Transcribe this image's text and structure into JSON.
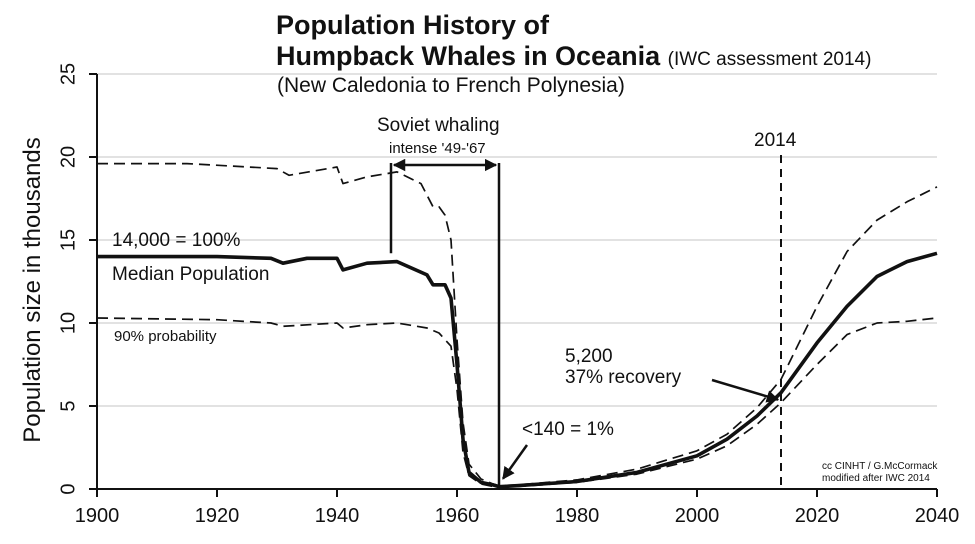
{
  "chart_data": {
    "type": "line",
    "title": "Population History of",
    "title_line2": "Humpback Whales in Oceania",
    "title_note": "(IWC assessment 2014)",
    "subtitle": "(New Caledonia to French Polynesia)",
    "xlabel": "",
    "ylabel": "Population size in thousands",
    "xlim": [
      1900,
      2040
    ],
    "ylim": [
      0,
      25
    ],
    "x_ticks": [
      1900,
      1920,
      1940,
      1960,
      1980,
      2000,
      2020,
      2040
    ],
    "y_ticks": [
      0,
      5,
      10,
      15,
      20,
      25
    ],
    "grid": "horizontal",
    "series": [
      {
        "name": "Median Population",
        "style": "solid",
        "x": [
          1900,
          1920,
          1929,
          1931,
          1935,
          1940,
          1941,
          1945,
          1950,
          1955,
          1956,
          1958,
          1959,
          1960,
          1961,
          1962,
          1964,
          1966,
          1967,
          1970,
          1980,
          1990,
          2000,
          2005,
          2010,
          2014,
          2020,
          2025,
          2030,
          2035,
          2040
        ],
        "y": [
          14.0,
          14.0,
          13.9,
          13.6,
          13.9,
          13.9,
          13.2,
          13.6,
          13.7,
          12.9,
          12.3,
          12.3,
          11.5,
          7.5,
          3.0,
          1.0,
          0.4,
          0.25,
          0.14,
          0.2,
          0.45,
          1.0,
          2.0,
          3.0,
          4.4,
          5.8,
          8.8,
          11.0,
          12.8,
          13.7,
          14.2
        ]
      },
      {
        "name": "90% probability (upper)",
        "style": "dashed",
        "x": [
          1900,
          1915,
          1930,
          1932,
          1940,
          1941,
          1945,
          1950,
          1954,
          1956,
          1957,
          1958,
          1959,
          1960,
          1961,
          1962,
          1964,
          1966,
          1967,
          1970,
          1980,
          1990,
          2000,
          2005,
          2010,
          2014,
          2020,
          2025,
          2030,
          2035,
          2040
        ],
        "y": [
          19.6,
          19.6,
          19.3,
          18.9,
          19.4,
          18.4,
          18.8,
          19.1,
          18.4,
          17.0,
          17.0,
          16.5,
          15.0,
          9.0,
          4.0,
          1.5,
          0.6,
          0.3,
          0.2,
          0.25,
          0.55,
          1.2,
          2.3,
          3.3,
          4.9,
          6.6,
          11.0,
          14.3,
          16.2,
          17.3,
          18.2
        ]
      },
      {
        "name": "90% probability (lower)",
        "style": "dashed",
        "x": [
          1900,
          1920,
          1929,
          1931,
          1940,
          1941,
          1945,
          1950,
          1955,
          1957,
          1959,
          1960,
          1961,
          1962,
          1964,
          1966,
          1967,
          1970,
          1980,
          1990,
          2000,
          2005,
          2010,
          2014,
          2020,
          2025,
          2030,
          2035,
          2040
        ],
        "y": [
          10.3,
          10.2,
          10.0,
          9.8,
          10.0,
          9.7,
          9.9,
          10.0,
          9.7,
          9.4,
          8.6,
          6.0,
          2.2,
          0.8,
          0.3,
          0.15,
          0.1,
          0.15,
          0.4,
          0.9,
          1.8,
          2.6,
          3.9,
          5.2,
          7.5,
          9.3,
          10.0,
          10.1,
          10.3
        ]
      }
    ],
    "annotations": {
      "soviet_whaling": "Soviet whaling",
      "soviet_period": "intense '49-'67",
      "soviet_start": 1949,
      "soviet_end": 1967,
      "year_2014": "2014",
      "year_2014_x": 2014,
      "baseline": "14,000 = 100%",
      "median_label": "Median Population",
      "probability_label": "90% probability",
      "recovery_count": "5,200",
      "recovery_pct": "37% recovery",
      "recovery_point": [
        2014,
        5.2
      ],
      "minimum": "<140 = 1%",
      "minimum_point": [
        1967,
        0.14
      ]
    },
    "credit_line1": "cc CINHT / G.McCormack",
    "credit_line2": "modified after IWC 2014"
  }
}
